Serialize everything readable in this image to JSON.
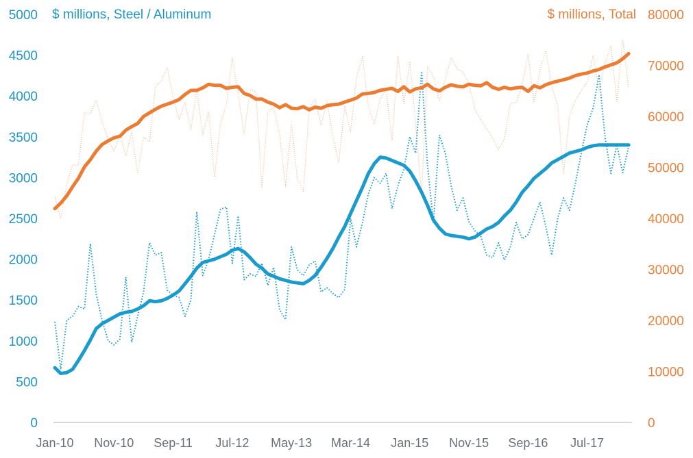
{
  "chart_data": {
    "type": "line",
    "title": "",
    "left_axis": {
      "label": "$ millions, Steel / Aluminum",
      "ylim": [
        0,
        5000
      ],
      "ticks": [
        "0",
        "500",
        "1000",
        "1500",
        "2000",
        "2500",
        "3000",
        "3500",
        "4000",
        "4500",
        "5000"
      ],
      "color": "#1a9bcb"
    },
    "right_axis": {
      "label": "$ millions, Total",
      "ylim": [
        0,
        80000
      ],
      "ticks": [
        "0",
        "10000",
        "20000",
        "30000",
        "40000",
        "50000",
        "60000",
        "70000",
        "80000"
      ],
      "color": "#e8823e"
    },
    "x_tick_labels": [
      "Jan-10",
      "Nov-10",
      "Sep-11",
      "Jul-12",
      "May-13",
      "Mar-14",
      "Jan-15",
      "Nov-15",
      "Sep-16",
      "Jul-17"
    ],
    "x_tick_every_months": 10,
    "start_month": "Jan-10",
    "grid": false,
    "legend": "none",
    "series": [
      {
        "name": "Steel / Aluminum (monthly)",
        "axis": "left",
        "style": "dotted",
        "color": "#1a9bcb",
        "values": [
          1230,
          650,
          1250,
          1300,
          1420,
          1390,
          2190,
          1570,
          1250,
          1000,
          950,
          1020,
          1780,
          980,
          1300,
          1600,
          2200,
          2050,
          2080,
          1620,
          1560,
          1530,
          1300,
          1500,
          2580,
          1800,
          2000,
          2300,
          2610,
          2640,
          1950,
          2530,
          1750,
          1820,
          1790,
          1950,
          1680,
          1900,
          1380,
          1260,
          2150,
          1870,
          1800,
          1930,
          1980,
          1600,
          1650,
          1580,
          1530,
          1630,
          2500,
          2150,
          2450,
          2800,
          3000,
          2930,
          3050,
          2620,
          2900,
          3100,
          3500,
          3300,
          4300,
          3150,
          2450,
          3520,
          3300,
          2900,
          2600,
          2750,
          2460,
          2350,
          2280,
          2050,
          2020,
          2200,
          1990,
          2150,
          2450,
          2250,
          2300,
          2500,
          2700,
          2400,
          2050,
          2500,
          2750,
          2600,
          2930,
          3300,
          3650,
          3850,
          4260,
          3500,
          3050,
          3400,
          3060,
          3380
        ]
      },
      {
        "name": "Steel / Aluminum (trend)",
        "axis": "left",
        "style": "solid",
        "color": "#1a9bcb",
        "values": [
          670,
          600,
          610,
          650,
          760,
          880,
          1010,
          1150,
          1210,
          1250,
          1290,
          1330,
          1350,
          1360,
          1390,
          1430,
          1490,
          1480,
          1490,
          1520,
          1560,
          1610,
          1700,
          1790,
          1890,
          1960,
          1980,
          2000,
          2030,
          2060,
          2110,
          2130,
          2090,
          2020,
          1940,
          1890,
          1820,
          1790,
          1760,
          1740,
          1720,
          1710,
          1700,
          1740,
          1800,
          1900,
          2010,
          2130,
          2270,
          2400,
          2560,
          2720,
          2880,
          3050,
          3170,
          3250,
          3240,
          3210,
          3180,
          3150,
          3080,
          2960,
          2820,
          2660,
          2480,
          2380,
          2310,
          2290,
          2280,
          2270,
          2250,
          2270,
          2320,
          2370,
          2400,
          2450,
          2530,
          2600,
          2700,
          2820,
          2900,
          2990,
          3050,
          3110,
          3180,
          3220,
          3260,
          3300,
          3320,
          3340,
          3370,
          3390,
          3400,
          3400,
          3400,
          3400,
          3400,
          3400
        ]
      },
      {
        "name": "Total (monthly)",
        "axis": "right",
        "style": "dotted",
        "color": "#f2b58f",
        "values": [
          44200,
          40000,
          46500,
          50500,
          50400,
          60800,
          60500,
          63200,
          58900,
          55500,
          53200,
          56500,
          52200,
          57000,
          48800,
          56000,
          55000,
          65900,
          66900,
          69600,
          63600,
          59400,
          62800,
          57300,
          65300,
          56400,
          60900,
          48100,
          58500,
          62400,
          71400,
          64400,
          56500,
          65300,
          64800,
          46000,
          60800,
          61800,
          56500,
          46100,
          58500,
          47800,
          45300,
          61600,
          63400,
          58300,
          63000,
          56000,
          51000,
          62000,
          56900,
          67600,
          71700,
          62000,
          58500,
          63400,
          65300,
          55300,
          71800,
          62500,
          70700,
          58500,
          44700,
          69800,
          67800,
          63000,
          67300,
          71500,
          69300,
          68700,
          66300,
          61500,
          59400,
          57600,
          55700,
          53500,
          55600,
          62600,
          62700,
          66000,
          72200,
          62700,
          69000,
          72900,
          65800,
          62100,
          48700,
          60000,
          63200,
          65100,
          66800,
          71900,
          65000,
          70500,
          73800,
          62900,
          75000,
          65500
        ]
      },
      {
        "name": "Total (trend)",
        "axis": "right",
        "style": "solid",
        "color": "#ea7d33",
        "values": [
          41900,
          43000,
          44400,
          46200,
          47900,
          50100,
          51500,
          53200,
          54500,
          55200,
          55800,
          56100,
          57300,
          58000,
          58600,
          60000,
          60700,
          61400,
          62000,
          62400,
          62800,
          63300,
          64300,
          65100,
          65100,
          65600,
          66300,
          66100,
          66100,
          65500,
          65700,
          65800,
          64500,
          64100,
          63400,
          63400,
          62800,
          62400,
          61700,
          62300,
          61600,
          61500,
          61900,
          61300,
          61800,
          61600,
          62100,
          62300,
          62400,
          62800,
          63200,
          63600,
          64400,
          64500,
          64700,
          65100,
          65300,
          65500,
          64900,
          65800,
          64800,
          65400,
          65600,
          66300,
          65400,
          65000,
          65700,
          66200,
          65900,
          65800,
          66300,
          66100,
          66000,
          66600,
          65700,
          65300,
          65700,
          65400,
          65600,
          65700,
          64900,
          66000,
          65600,
          66200,
          66600,
          66900,
          67200,
          67500,
          68000,
          68300,
          68500,
          68900,
          69200,
          69700,
          70100,
          70500,
          71300,
          72300
        ]
      }
    ]
  }
}
